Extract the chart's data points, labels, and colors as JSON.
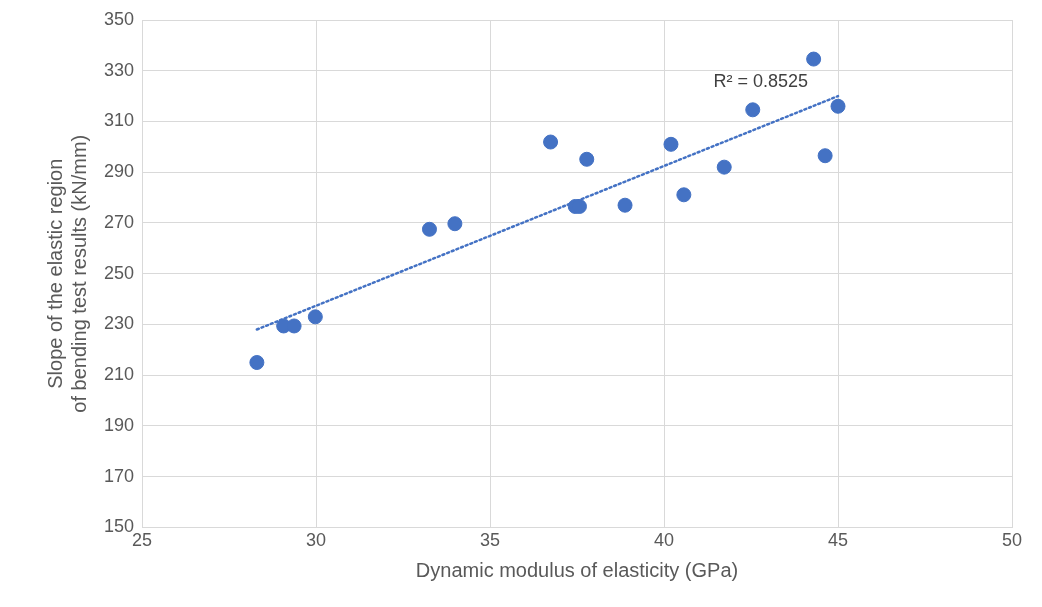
{
  "chart_data": {
    "type": "scatter",
    "xlabel": "Dynamic modulus of elasticity (GPa)",
    "ylabel": "Slope of the elastic region of bending test results (kN/mm)",
    "xlim": [
      25,
      50
    ],
    "xticks": [
      25,
      30,
      35,
      40,
      45,
      50
    ],
    "ylim": [
      150,
      350
    ],
    "yticks": [
      150,
      170,
      190,
      210,
      230,
      250,
      270,
      290,
      310,
      330,
      350
    ],
    "grid": true,
    "legend": false,
    "marker": "circle",
    "series": [
      {
        "type": "scatter",
        "color": "#4472c4",
        "x": [
          28.3,
          29.07,
          29.37,
          29.98,
          33.26,
          33.99,
          36.74,
          37.45,
          37.57,
          37.78,
          38.88,
          40.2,
          40.57,
          41.73,
          42.55,
          44.3,
          44.63,
          45.0
        ],
        "values": [
          215,
          229.4,
          229.4,
          233,
          267.5,
          269.7,
          301.9,
          276.5,
          276.5,
          295.1,
          277,
          301,
          281.1,
          292,
          314.6,
          334.6,
          296.5,
          316
        ]
      },
      {
        "type": "line",
        "color": "#4472c4",
        "line_style": "dotted",
        "marker": "none",
        "x": [
          28.3,
          45.0
        ],
        "values": [
          228,
          320
        ]
      }
    ],
    "annotations": [
      "R² = 0.8525"
    ]
  }
}
